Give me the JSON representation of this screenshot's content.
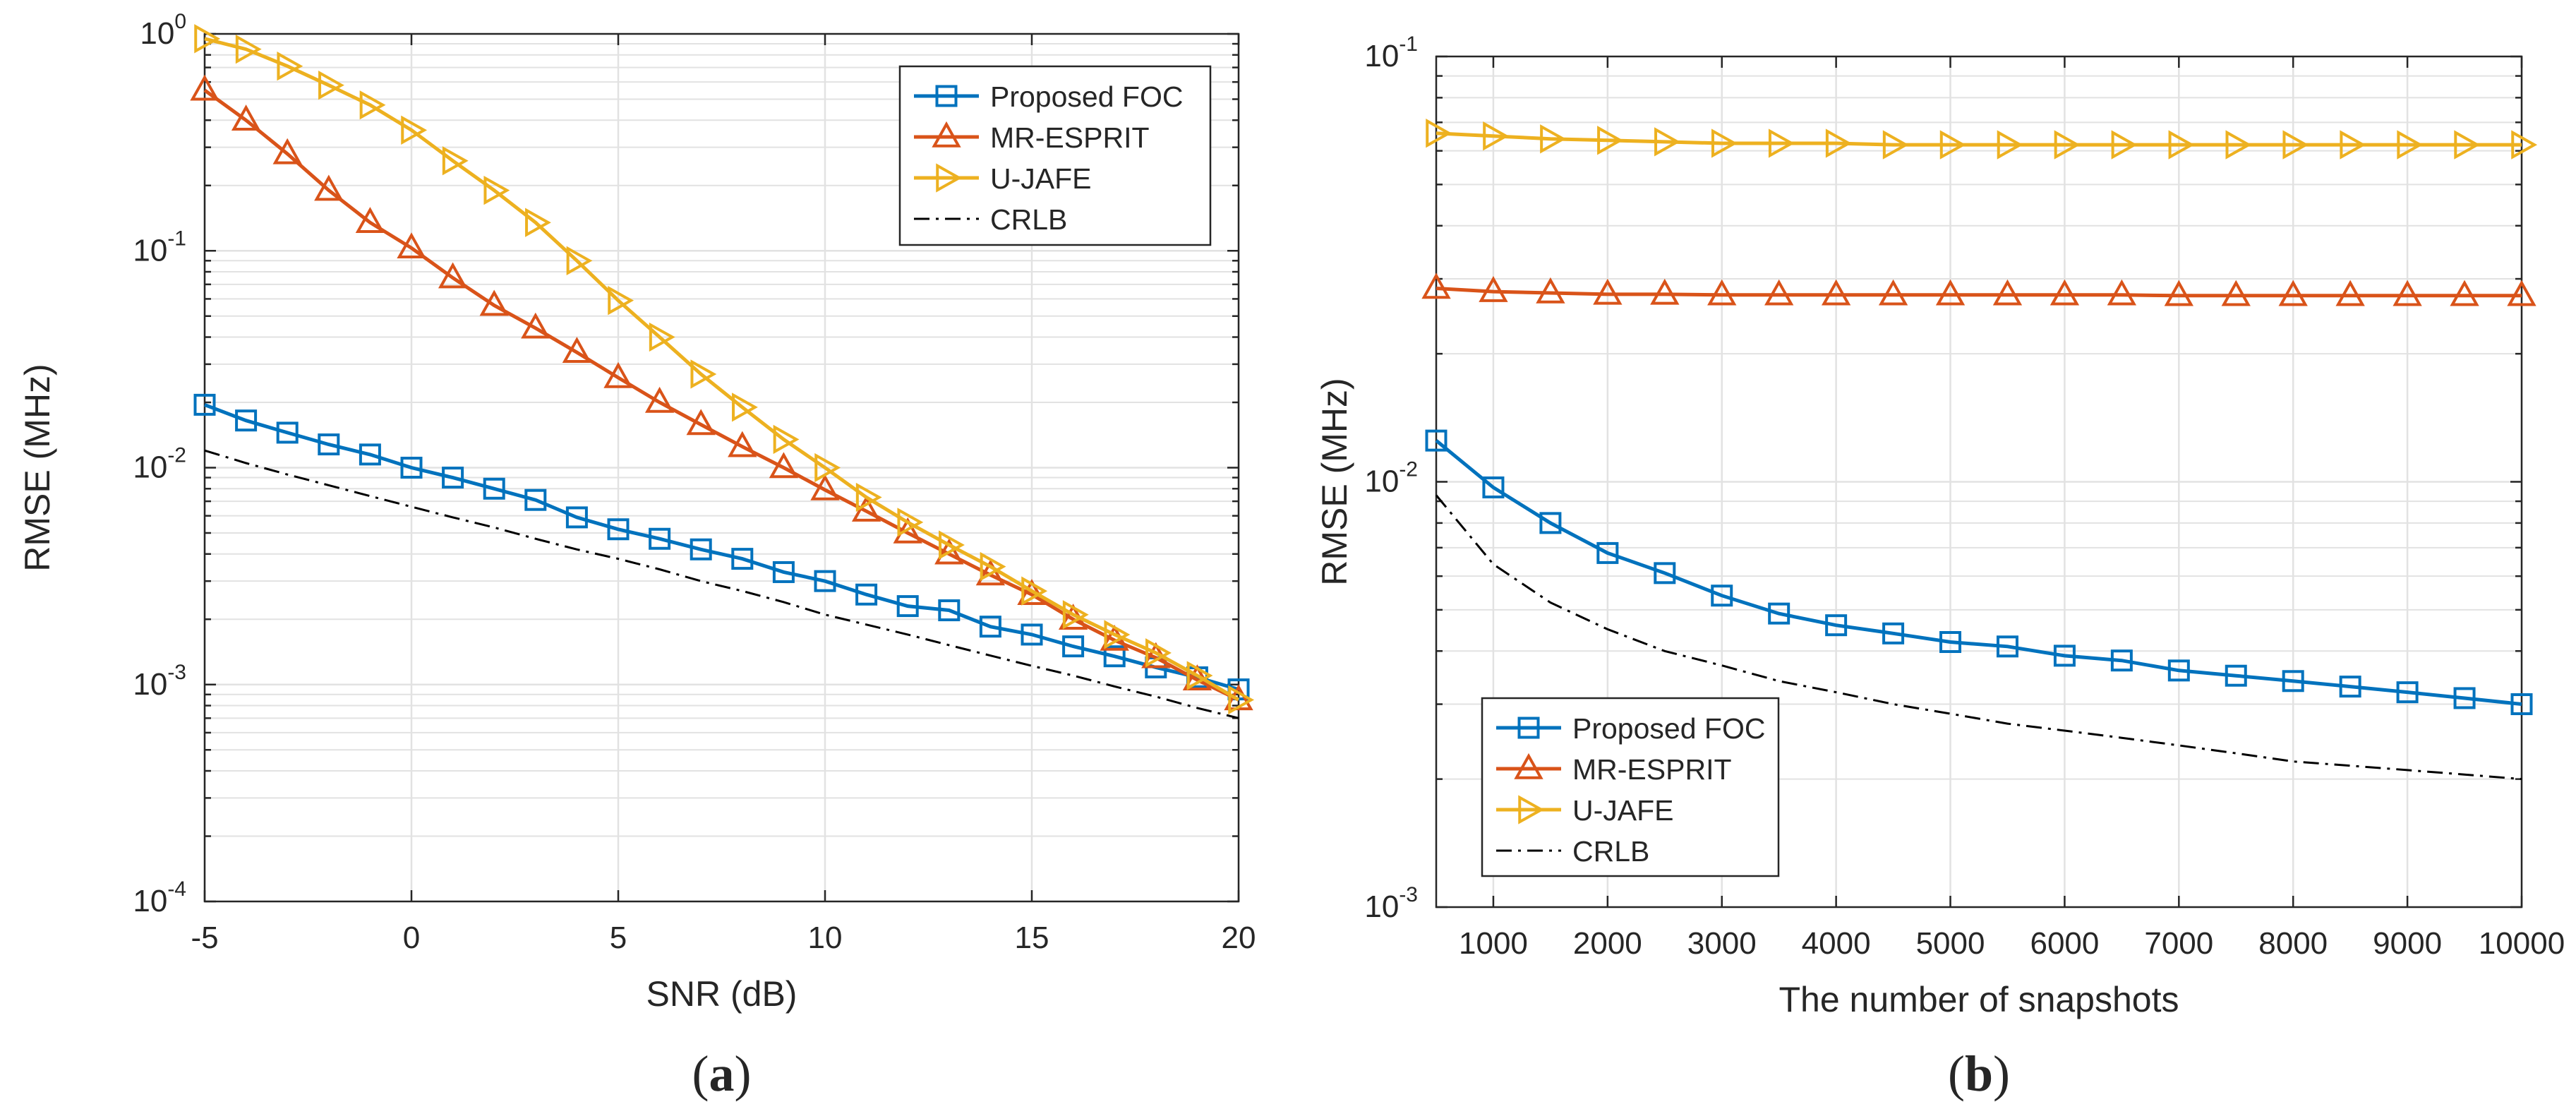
{
  "colors": {
    "series1": "#0072BD",
    "series2": "#D95319",
    "series3": "#EDB120",
    "crlb": "#000000",
    "grid": "#e2e2e2",
    "axis": "#262626"
  },
  "chart_data": [
    {
      "type": "line",
      "yscale": "log",
      "caption": "(a)",
      "caption_letter": "a",
      "xlabel": "SNR (dB)",
      "ylabel": "RMSE (MHz)",
      "xlim": [
        -5,
        20
      ],
      "ylim": [
        0.0001,
        1
      ],
      "xticks": [
        -5,
        0,
        5,
        10,
        15,
        20
      ],
      "xtick_labels": [
        "-5",
        "0",
        "5",
        "10",
        "15",
        "20"
      ],
      "ytick_labels": [
        {
          "value": 0.0001,
          "base": "10",
          "exp": "-4"
        },
        {
          "value": 0.001,
          "base": "10",
          "exp": "-3"
        },
        {
          "value": 0.01,
          "base": "10",
          "exp": "-2"
        },
        {
          "value": 0.1,
          "base": "10",
          "exp": "-1"
        },
        {
          "value": 1,
          "base": "10",
          "exp": "0"
        }
      ],
      "grid": true,
      "legend_position": "top-right",
      "x": [
        -5,
        -4,
        -3,
        -2,
        -1,
        0,
        1,
        2,
        3,
        4,
        5,
        6,
        7,
        8,
        9,
        10,
        11,
        12,
        13,
        14,
        15,
        16,
        17,
        18,
        19,
        20
      ],
      "series": [
        {
          "name": "Proposed FOC",
          "marker": "square",
          "color_key": "series1",
          "values": [
            0.0195,
            0.0165,
            0.0145,
            0.0128,
            0.0115,
            0.01,
            0.009,
            0.008,
            0.0071,
            0.0059,
            0.0052,
            0.0047,
            0.0042,
            0.0038,
            0.0033,
            0.003,
            0.0026,
            0.0023,
            0.0022,
            0.00185,
            0.0017,
            0.0015,
            0.00135,
            0.0012,
            0.00108,
            0.00095
          ]
        },
        {
          "name": "MR-ESPRIT",
          "marker": "triangle-up",
          "color_key": "series2",
          "values": [
            0.55,
            0.4,
            0.28,
            0.19,
            0.135,
            0.103,
            0.075,
            0.056,
            0.044,
            0.034,
            0.026,
            0.02,
            0.0158,
            0.0125,
            0.01,
            0.0079,
            0.0063,
            0.005,
            0.004,
            0.0032,
            0.0026,
            0.002,
            0.0016,
            0.00133,
            0.00105,
            0.00085
          ]
        },
        {
          "name": "U-JAFE",
          "marker": "triangle-right",
          "color_key": "series3",
          "values": [
            0.95,
            0.85,
            0.71,
            0.58,
            0.47,
            0.36,
            0.26,
            0.19,
            0.135,
            0.09,
            0.059,
            0.04,
            0.027,
            0.019,
            0.0135,
            0.01,
            0.0073,
            0.0056,
            0.0044,
            0.0035,
            0.0027,
            0.0021,
            0.0017,
            0.0014,
            0.0011,
            0.00085
          ]
        },
        {
          "name": "CRLB",
          "marker": "none",
          "linestyle": "dashdot",
          "color_key": "crlb",
          "values": [
            0.012,
            0.0105,
            0.0093,
            0.0083,
            0.0074,
            0.0066,
            0.0059,
            0.0053,
            0.0047,
            0.0042,
            0.0038,
            0.0034,
            0.003,
            0.0027,
            0.0024,
            0.0021,
            0.00189,
            0.0017,
            0.00152,
            0.00136,
            0.00122,
            0.0011,
            0.00098,
            0.00088,
            0.00078,
            0.0007
          ]
        }
      ]
    },
    {
      "type": "line",
      "yscale": "log",
      "caption": "(b)",
      "caption_letter": "b",
      "xlabel": "The number of snapshots",
      "ylabel": "RMSE (MHz)",
      "xlim": [
        500,
        10000
      ],
      "ylim": [
        0.001,
        0.1
      ],
      "xticks": [
        1000,
        2000,
        3000,
        4000,
        5000,
        6000,
        7000,
        8000,
        9000,
        10000
      ],
      "xtick_labels": [
        "1000",
        "2000",
        "3000",
        "4000",
        "5000",
        "6000",
        "7000",
        "8000",
        "9000",
        "10000"
      ],
      "ytick_labels": [
        {
          "value": 0.001,
          "base": "10",
          "exp": "-3"
        },
        {
          "value": 0.01,
          "base": "10",
          "exp": "-2"
        },
        {
          "value": 0.1,
          "base": "10",
          "exp": "-1"
        }
      ],
      "grid": true,
      "legend_position": "bottom-left",
      "x": [
        500,
        1000,
        1500,
        2000,
        2500,
        3000,
        3500,
        4000,
        4500,
        5000,
        5500,
        6000,
        6500,
        7000,
        7500,
        8000,
        8500,
        9000,
        9500,
        10000
      ],
      "series": [
        {
          "name": "Proposed FOC",
          "marker": "square",
          "color_key": "series1",
          "values": [
            0.0125,
            0.0097,
            0.008,
            0.0068,
            0.0061,
            0.0054,
            0.0049,
            0.0046,
            0.0044,
            0.0042,
            0.0041,
            0.0039,
            0.0038,
            0.0036,
            0.0035,
            0.0034,
            0.0033,
            0.0032,
            0.0031,
            0.003
          ]
        },
        {
          "name": "MR-ESPRIT",
          "marker": "triangle-up",
          "color_key": "series2",
          "values": [
            0.0285,
            0.028,
            0.0278,
            0.0276,
            0.0276,
            0.0275,
            0.0275,
            0.0275,
            0.0275,
            0.0275,
            0.0275,
            0.0275,
            0.0275,
            0.0274,
            0.0274,
            0.0274,
            0.0274,
            0.0274,
            0.0274,
            0.0274
          ]
        },
        {
          "name": "U-JAFE",
          "marker": "triangle-right",
          "color_key": "series3",
          "values": [
            0.066,
            0.065,
            0.064,
            0.0635,
            0.063,
            0.0625,
            0.0625,
            0.0625,
            0.062,
            0.062,
            0.062,
            0.062,
            0.062,
            0.062,
            0.062,
            0.062,
            0.062,
            0.062,
            0.062,
            0.062
          ]
        },
        {
          "name": "CRLB",
          "marker": "none",
          "linestyle": "dashdot",
          "color_key": "crlb",
          "values": [
            0.0093,
            0.0064,
            0.0052,
            0.0045,
            0.004,
            0.0037,
            0.0034,
            0.0032,
            0.003,
            0.00285,
            0.0027,
            0.0026,
            0.0025,
            0.0024,
            0.0023,
            0.0022,
            0.00215,
            0.0021,
            0.00205,
            0.002
          ]
        }
      ]
    }
  ]
}
